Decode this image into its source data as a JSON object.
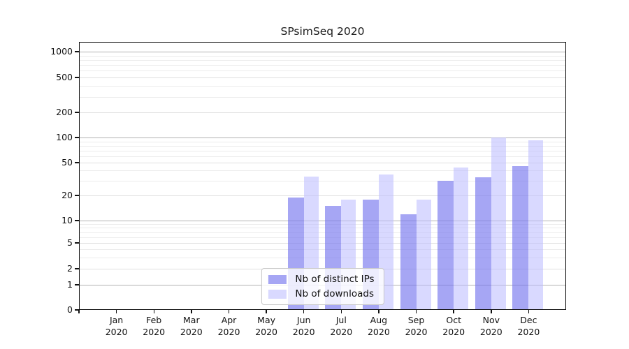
{
  "chart_data": {
    "type": "bar",
    "title": "SPsimSeq 2020",
    "xlabel": "",
    "ylabel": "",
    "y_scale": "log-like (0,1,2,5,10,20,50,100,200,500,1000)",
    "y_ticks": [
      0,
      1,
      2,
      5,
      10,
      20,
      50,
      100,
      200,
      500,
      1000
    ],
    "ylim": [
      0,
      1300
    ],
    "grid": "horizontal major + minor log gridlines",
    "legend_position": "inside bottom center",
    "categories": [
      "Jan",
      "Feb",
      "Mar",
      "Apr",
      "May",
      "Jun",
      "Jul",
      "Aug",
      "Sep",
      "Oct",
      "Nov",
      "Dec"
    ],
    "year_label": "2020",
    "series": [
      {
        "name": "Nb of distinct IPs",
        "color": "#a6a6f4",
        "values": [
          0,
          0,
          0,
          0,
          0,
          19,
          15,
          18,
          12,
          30,
          33,
          45
        ]
      },
      {
        "name": "Nb of downloads",
        "color": "#d9d9ff",
        "values": [
          0,
          0,
          0,
          0,
          0,
          34,
          18,
          36,
          18,
          44,
          101,
          93
        ]
      }
    ]
  }
}
